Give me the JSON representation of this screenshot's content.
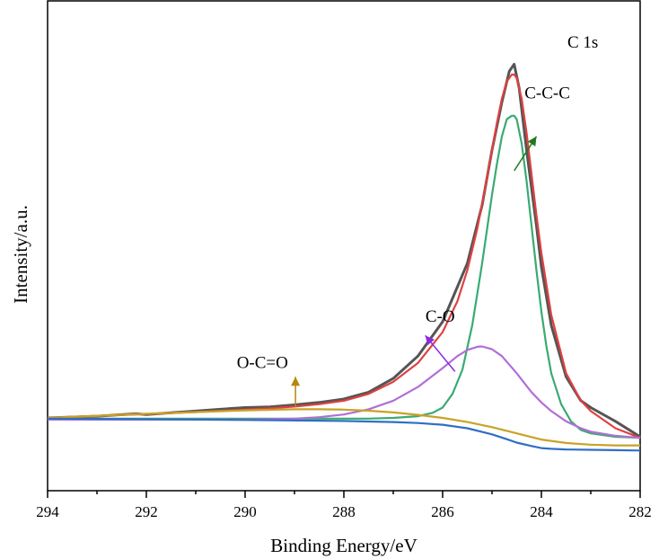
{
  "chart_data": {
    "type": "line",
    "title": "",
    "panel_label": "C 1s",
    "xlabel": "Binding Energy/eV",
    "ylabel": "Intensity/a.u.",
    "xlim": [
      294,
      282
    ],
    "x_reversed": true,
    "ylim": [
      -0.22,
      1.2
    ],
    "y_ticks_shown": false,
    "grid": false,
    "legend": "none",
    "x_ticks": [
      294,
      292,
      290,
      288,
      286,
      284,
      282
    ],
    "x_tick_labels": [
      "294",
      "292",
      "290",
      "288",
      "286",
      "284",
      "282"
    ],
    "series": [
      {
        "key": "raw",
        "color": "#555555",
        "x": [
          294,
          293,
          292.2,
          292,
          291.5,
          291,
          290.5,
          290,
          289.5,
          289,
          288.5,
          288,
          287.5,
          287,
          286.5,
          286,
          285.5,
          285.2,
          285,
          284.8,
          284.65,
          284.55,
          284.45,
          284.3,
          284.1,
          284,
          283.8,
          283.5,
          283.2,
          283,
          282.5,
          282
        ],
        "y": [
          0,
          0.005,
          0.012,
          0.01,
          0.015,
          0.02,
          0.025,
          0.03,
          0.032,
          0.038,
          0.045,
          0.055,
          0.075,
          0.115,
          0.18,
          0.28,
          0.45,
          0.62,
          0.78,
          0.92,
          1.01,
          1.03,
          0.96,
          0.78,
          0.56,
          0.44,
          0.27,
          0.12,
          0.05,
          0.03,
          -0.01,
          -0.055
        ]
      },
      {
        "key": "envelope",
        "color": "#e04040",
        "x": [
          294,
          293,
          292,
          291,
          290,
          289.5,
          289,
          288.5,
          288,
          287.5,
          287,
          286.5,
          286,
          285.7,
          285.5,
          285.3,
          285.1,
          285,
          284.9,
          284.8,
          284.7,
          284.6,
          284.55,
          284.5,
          284.4,
          284.3,
          284.2,
          284.1,
          284,
          283.8,
          283.5,
          283.2,
          283,
          282.5,
          282
        ],
        "y": [
          0,
          0.006,
          0.011,
          0.017,
          0.024,
          0.028,
          0.033,
          0.04,
          0.05,
          0.07,
          0.105,
          0.16,
          0.25,
          0.34,
          0.43,
          0.55,
          0.7,
          0.78,
          0.86,
          0.93,
          0.98,
          1.0,
          1.0,
          0.99,
          0.93,
          0.83,
          0.71,
          0.59,
          0.48,
          0.3,
          0.13,
          0.05,
          0.02,
          -0.03,
          -0.058
        ]
      },
      {
        "key": "C-C-C",
        "color": "#3aaa72",
        "x": [
          294,
          287.5,
          287,
          286.5,
          286.2,
          286,
          285.8,
          285.6,
          285.4,
          285.2,
          285,
          284.9,
          284.8,
          284.7,
          284.6,
          284.55,
          284.5,
          284.4,
          284.3,
          284.2,
          284.1,
          284,
          283.9,
          283.8,
          283.6,
          283.4,
          283.2,
          283,
          282.5,
          282
        ],
        "y": [
          -0.002,
          -0.002,
          0,
          0.005,
          0.015,
          0.03,
          0.07,
          0.14,
          0.27,
          0.45,
          0.65,
          0.74,
          0.82,
          0.87,
          0.88,
          0.88,
          0.87,
          0.8,
          0.69,
          0.56,
          0.43,
          0.31,
          0.21,
          0.13,
          0.04,
          -0.01,
          -0.035,
          -0.045,
          -0.055,
          -0.058
        ]
      },
      {
        "key": "C-O",
        "color": "#b06fd6",
        "x": [
          294,
          290,
          289,
          288.5,
          288,
          287.5,
          287,
          286.5,
          286,
          285.7,
          285.5,
          285.3,
          285.2,
          285,
          284.8,
          284.5,
          284.2,
          284,
          283.8,
          283.5,
          283.2,
          283,
          282.5,
          282
        ],
        "y": [
          -0.005,
          -0.005,
          -0.002,
          0.002,
          0.01,
          0.025,
          0.05,
          0.09,
          0.145,
          0.18,
          0.198,
          0.207,
          0.208,
          0.2,
          0.18,
          0.13,
          0.075,
          0.045,
          0.02,
          -0.01,
          -0.03,
          -0.04,
          -0.052,
          -0.058
        ]
      },
      {
        "key": "O-C=O",
        "color": "#c9a227",
        "x": [
          294,
          292,
          290,
          289,
          288.5,
          288,
          287.5,
          287,
          286.5,
          286,
          285.5,
          285,
          284.5,
          284,
          283.5,
          283,
          282.5,
          282
        ],
        "y": [
          0,
          0.012,
          0.022,
          0.025,
          0.025,
          0.024,
          0.021,
          0.016,
          0.009,
          0.0,
          -0.012,
          -0.027,
          -0.045,
          -0.063,
          -0.073,
          -0.078,
          -0.08,
          -0.08
        ]
      },
      {
        "key": "background",
        "color": "#2f6fc4",
        "x": [
          294,
          292,
          290,
          288,
          287,
          286.5,
          286,
          285.5,
          285,
          284.7,
          284.5,
          284.2,
          284,
          283.8,
          283.5,
          283,
          282.5,
          282
        ],
        "y": [
          -0.002,
          -0.004,
          -0.006,
          -0.009,
          -0.012,
          -0.015,
          -0.02,
          -0.03,
          -0.048,
          -0.062,
          -0.072,
          -0.082,
          -0.088,
          -0.09,
          -0.092,
          -0.093,
          -0.094,
          -0.095
        ]
      }
    ],
    "annotations": [
      {
        "text": "C-C-C",
        "label_x": 283.88,
        "label_y": 0.93,
        "arrow_from": [
          284.55,
          0.72
        ],
        "arrow_to": [
          284.1,
          0.82
        ],
        "color": "#1f7a1f"
      },
      {
        "text": "C-O",
        "label_x": 286.05,
        "label_y": 0.28,
        "arrow_from": [
          285.75,
          0.135
        ],
        "arrow_to": [
          286.35,
          0.24
        ],
        "color": "#8a2be2"
      },
      {
        "text": "O-C=O",
        "label_x": 289.65,
        "label_y": 0.145,
        "arrow_from": [
          288.98,
          0.033
        ],
        "arrow_to": [
          288.98,
          0.12
        ],
        "color": "#b8860b"
      }
    ]
  }
}
